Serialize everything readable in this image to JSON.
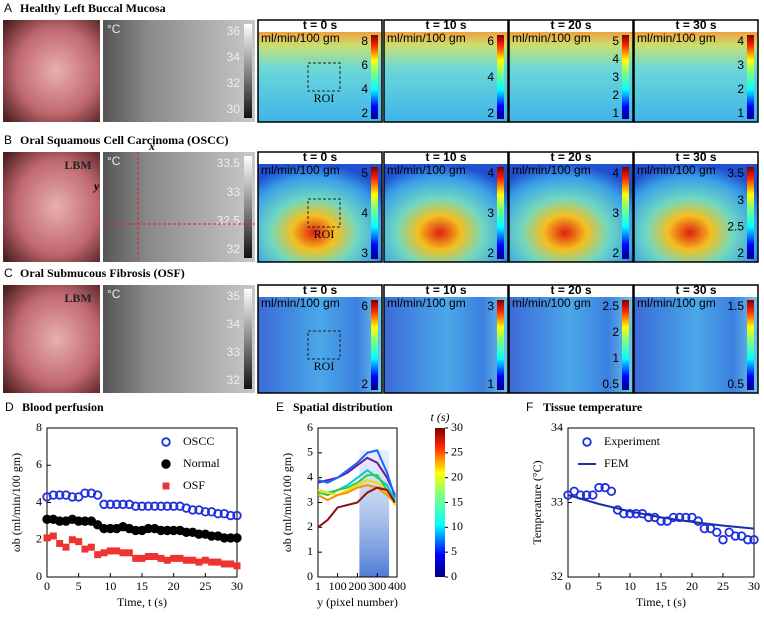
{
  "rows": [
    {
      "letter": "A",
      "title": "Healthy Left Buccal Mucosa",
      "thermal": {
        "unit": "°C",
        "ticks": [
          36,
          34,
          32,
          30
        ]
      },
      "maps": [
        {
          "time": "t = 0 s",
          "unit": "ml/min/100 gm",
          "ticks": [
            8,
            6,
            4,
            2
          ],
          "roi": "ROI"
        },
        {
          "time": "t = 10 s",
          "unit": "ml/min/100 gm",
          "ticks": [
            6,
            4,
            2
          ]
        },
        {
          "time": "t = 20 s",
          "unit": "ml/min/100 gm",
          "ticks": [
            5,
            4,
            3,
            2,
            1
          ]
        },
        {
          "time": "t = 30 s",
          "unit": "ml/min/100 gm",
          "ticks": [
            4,
            3,
            2,
            1
          ]
        }
      ]
    },
    {
      "letter": "B",
      "title": "Oral Squamous Cell Carcinoma (OSCC)",
      "photo_label": "LBM",
      "axis_x": "x",
      "axis_y": "y",
      "thermal": {
        "unit": "°C",
        "ticks": [
          33.5,
          33,
          32.5,
          32
        ]
      },
      "maps": [
        {
          "time": "t = 0 s",
          "unit": "ml/min/100 gm",
          "ticks": [
            5,
            4,
            3
          ],
          "roi": "ROI"
        },
        {
          "time": "t = 10 s",
          "unit": "ml/min/100 gm",
          "ticks": [
            4,
            3,
            2
          ]
        },
        {
          "time": "t = 20 s",
          "unit": "ml/min/100 gm",
          "ticks": [
            4,
            3,
            2
          ]
        },
        {
          "time": "t = 30 s",
          "unit": "ml/min/100 gm",
          "ticks": [
            3.5,
            3,
            2.5,
            2
          ]
        }
      ]
    },
    {
      "letter": "C",
      "title": "Oral Submucous Fibrosis (OSF)",
      "photo_label": "LBM",
      "thermal": {
        "unit": "°C",
        "ticks": [
          35,
          34,
          33,
          32
        ]
      },
      "maps": [
        {
          "time": "t = 0 s",
          "unit": "ml/min/100 gm",
          "ticks": [
            6,
            2
          ],
          "roi": "ROI"
        },
        {
          "time": "t = 10 s",
          "unit": "ml/min/100 gm",
          "ticks": [
            3,
            1
          ]
        },
        {
          "time": "t = 20 s",
          "unit": "ml/min/100 gm",
          "ticks": [
            2.5,
            2,
            1,
            0.5
          ]
        },
        {
          "time": "t = 30 s",
          "unit": "ml/min/100 gm",
          "ticks": [
            1.5,
            0.5
          ]
        }
      ]
    }
  ],
  "chart_data": [
    {
      "type": "scatter",
      "letter": "D",
      "title": "Blood perfusion",
      "xlabel": "Time, t (s)",
      "ylabel": "ωb (ml/min/100 gm)",
      "xlim": [
        0,
        30
      ],
      "xticks": [
        0,
        5,
        10,
        15,
        20,
        25,
        30
      ],
      "ylim": [
        0,
        8
      ],
      "yticks": [
        0,
        2,
        4,
        6,
        8
      ],
      "legend": "upper-right",
      "x": [
        0,
        1,
        2,
        3,
        4,
        5,
        6,
        7,
        8,
        9,
        10,
        11,
        12,
        13,
        14,
        15,
        16,
        17,
        18,
        19,
        20,
        21,
        22,
        23,
        24,
        25,
        26,
        27,
        28,
        29,
        30
      ],
      "series": [
        {
          "name": "OSCC",
          "color": "#1f2fe0",
          "marker": "open-circle",
          "values": [
            4.3,
            4.4,
            4.4,
            4.4,
            4.3,
            4.3,
            4.5,
            4.5,
            4.4,
            3.9,
            3.9,
            3.9,
            3.9,
            3.9,
            3.8,
            3.8,
            3.8,
            3.8,
            3.8,
            3.8,
            3.8,
            3.8,
            3.7,
            3.6,
            3.6,
            3.5,
            3.5,
            3.4,
            3.4,
            3.3,
            3.3
          ]
        },
        {
          "name": "Normal",
          "color": "#000000",
          "marker": "circle",
          "values": [
            3.1,
            3.1,
            3.0,
            3.0,
            3.1,
            3.0,
            3.0,
            3.0,
            2.8,
            2.6,
            2.6,
            2.6,
            2.7,
            2.6,
            2.5,
            2.5,
            2.6,
            2.6,
            2.5,
            2.5,
            2.5,
            2.5,
            2.4,
            2.4,
            2.3,
            2.3,
            2.2,
            2.2,
            2.1,
            2.1,
            2.1
          ]
        },
        {
          "name": "OSF",
          "color": "#ee3333",
          "marker": "square",
          "values": [
            2.1,
            2.2,
            1.8,
            1.6,
            2.0,
            1.9,
            1.5,
            1.6,
            1.2,
            1.3,
            1.4,
            1.4,
            1.3,
            1.3,
            1.0,
            1.0,
            1.1,
            1.1,
            1.0,
            0.9,
            1.0,
            1.0,
            0.9,
            0.9,
            0.8,
            0.9,
            0.8,
            0.8,
            0.7,
            0.7,
            0.6
          ]
        }
      ]
    },
    {
      "type": "line",
      "letter": "E",
      "title": "Spatial distribution",
      "xlabel": "y (pixel number)",
      "ylabel": "ωb (ml/min/100 gm)",
      "xlim": [
        1,
        400
      ],
      "xticks": [
        1,
        100,
        200,
        300,
        400
      ],
      "ylim": [
        0,
        6
      ],
      "yticks": [
        0,
        1,
        2,
        3,
        4,
        5,
        6
      ],
      "highlight_x": [
        210,
        360
      ],
      "colorbar": {
        "title": "t (s)",
        "lim": [
          0,
          30
        ],
        "ticks": [
          0,
          5,
          10,
          15,
          20,
          25,
          30
        ]
      },
      "x": [
        1,
        50,
        100,
        150,
        200,
        250,
        300,
        350,
        390
      ],
      "series": [
        {
          "color": "#6a1b9a",
          "marker": "line",
          "values": [
            3.8,
            3.9,
            4.0,
            4.2,
            4.5,
            4.8,
            4.6,
            4.0,
            3.3
          ]
        },
        {
          "color": "#1565ff",
          "marker": "line",
          "values": [
            3.9,
            3.8,
            4.0,
            4.3,
            4.6,
            5.0,
            5.1,
            4.2,
            3.2
          ]
        },
        {
          "color": "#00c8e0",
          "marker": "line",
          "values": [
            3.5,
            3.4,
            3.5,
            3.7,
            4.0,
            4.3,
            4.0,
            3.7,
            3.1
          ]
        },
        {
          "color": "#33cc33",
          "marker": "line",
          "values": [
            3.4,
            3.3,
            3.5,
            3.6,
            3.8,
            4.1,
            4.1,
            3.5,
            3.0
          ]
        },
        {
          "color": "#e8e000",
          "marker": "line",
          "values": [
            3.5,
            3.4,
            3.3,
            3.5,
            3.7,
            3.9,
            3.8,
            3.4,
            2.9
          ]
        },
        {
          "color": "#ff8c00",
          "marker": "line",
          "values": [
            3.3,
            3.1,
            3.3,
            3.4,
            3.6,
            3.7,
            3.6,
            3.3,
            3.0
          ]
        },
        {
          "color": "#8b1010",
          "marker": "line",
          "values": [
            2.0,
            2.3,
            2.8,
            2.9,
            3.0,
            3.4,
            3.6,
            3.5,
            3.0
          ]
        }
      ]
    },
    {
      "type": "scatter",
      "letter": "F",
      "title": "Tissue temperature",
      "xlabel": "Time, t (s)",
      "ylabel": "Temperature (°C)",
      "xlim": [
        0,
        30
      ],
      "xticks": [
        0,
        5,
        10,
        15,
        20,
        25,
        30
      ],
      "ylim": [
        32,
        34
      ],
      "yticks": [
        32,
        33,
        34
      ],
      "legend": "upper-left",
      "series": [
        {
          "name": "Experiment",
          "color": "#1f2fe0",
          "marker": "open-circle",
          "x": [
            0,
            1,
            2,
            3,
            4,
            5,
            6,
            7,
            8,
            9,
            10,
            11,
            12,
            13,
            14,
            15,
            16,
            17,
            18,
            19,
            20,
            21,
            22,
            23,
            24,
            25,
            26,
            27,
            28,
            29,
            30
          ],
          "values": [
            33.1,
            33.15,
            33.1,
            33.1,
            33.1,
            33.2,
            33.2,
            33.15,
            32.9,
            32.85,
            32.85,
            32.85,
            32.85,
            32.8,
            32.8,
            32.75,
            32.75,
            32.8,
            32.8,
            32.8,
            32.8,
            32.75,
            32.65,
            32.65,
            32.6,
            32.5,
            32.6,
            32.55,
            32.55,
            32.5,
            32.5
          ]
        },
        {
          "name": "FEM",
          "color": "#1a2fb0",
          "marker": "line",
          "x": [
            0,
            5,
            10,
            15,
            20,
            25,
            30
          ],
          "values": [
            33.1,
            32.98,
            32.88,
            32.8,
            32.74,
            32.69,
            32.65
          ]
        }
      ]
    }
  ]
}
